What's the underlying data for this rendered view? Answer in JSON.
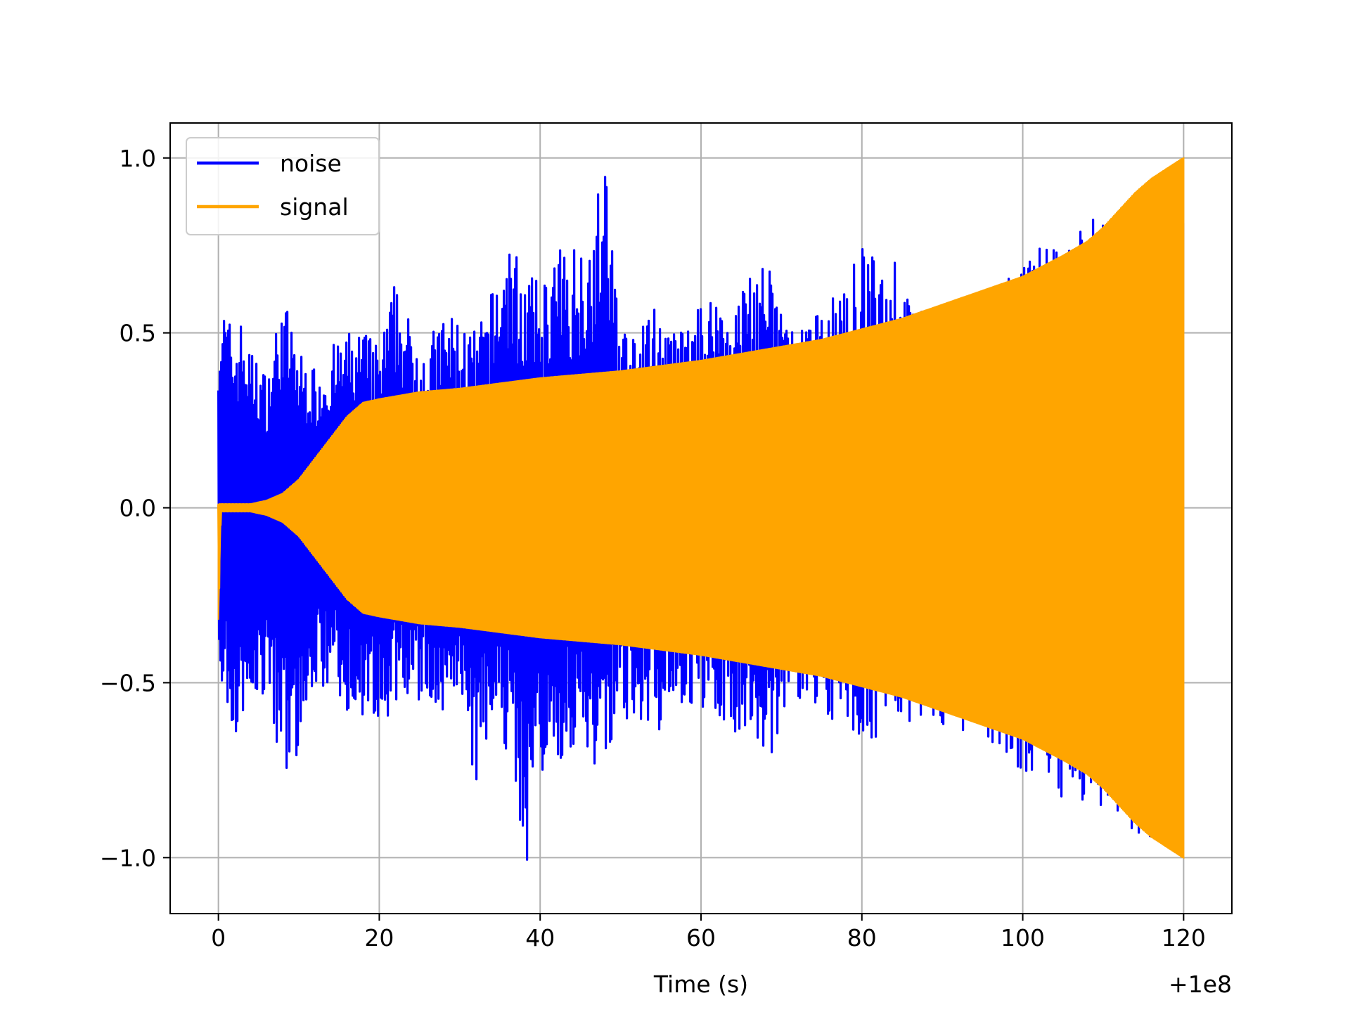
{
  "chart_data": {
    "type": "line",
    "title": "",
    "xlabel": "Time (s)",
    "ylabel": "",
    "x_offset_label": "+1e8",
    "xlim": [
      -6,
      126
    ],
    "ylim": [
      -1.16,
      1.1
    ],
    "x_ticks": [
      0,
      20,
      40,
      60,
      80,
      100,
      120
    ],
    "x_tick_labels": [
      "0",
      "20",
      "40",
      "60",
      "80",
      "100",
      "120"
    ],
    "y_ticks": [
      -1.0,
      -0.5,
      0.0,
      0.5,
      1.0
    ],
    "y_tick_labels": [
      "−1.0",
      "−0.5",
      "0.0",
      "0.5",
      "1.0"
    ],
    "grid": true,
    "legend_position": "top-left",
    "series": [
      {
        "name": "noise",
        "color": "#0000ff",
        "x_range": [
          0,
          120
        ],
        "upper_envelope": [
          [
            0,
            0.61
          ],
          [
            1,
            0.57
          ],
          [
            2,
            0.5
          ],
          [
            3,
            0.55
          ],
          [
            4,
            0.45
          ],
          [
            5,
            0.43
          ],
          [
            6,
            0.38
          ],
          [
            8,
            0.62
          ],
          [
            10,
            0.45
          ],
          [
            12,
            0.4
          ],
          [
            14,
            0.46
          ],
          [
            16,
            0.5
          ],
          [
            18,
            0.52
          ],
          [
            20,
            0.46
          ],
          [
            22,
            0.66
          ],
          [
            24,
            0.52
          ],
          [
            26,
            0.48
          ],
          [
            28,
            0.56
          ],
          [
            30,
            0.55
          ],
          [
            32,
            0.5
          ],
          [
            34,
            0.62
          ],
          [
            36,
            0.79
          ],
          [
            38,
            0.68
          ],
          [
            40,
            0.64
          ],
          [
            42,
            0.74
          ],
          [
            44,
            0.76
          ],
          [
            46,
            0.8
          ],
          [
            48,
            1.0
          ],
          [
            50,
            0.55
          ],
          [
            52,
            0.47
          ],
          [
            54,
            0.6
          ],
          [
            56,
            0.5
          ],
          [
            58,
            0.52
          ],
          [
            60,
            0.58
          ],
          [
            62,
            0.64
          ],
          [
            64,
            0.56
          ],
          [
            66,
            0.72
          ],
          [
            68,
            0.71
          ],
          [
            70,
            0.6
          ],
          [
            72,
            0.5
          ],
          [
            74,
            0.55
          ],
          [
            76,
            0.59
          ],
          [
            78,
            0.64
          ],
          [
            80,
            0.76
          ],
          [
            82,
            0.7
          ],
          [
            84,
            0.73
          ],
          [
            86,
            0.6
          ],
          [
            88,
            0.55
          ],
          [
            90,
            0.59
          ],
          [
            92,
            0.57
          ],
          [
            94,
            0.6
          ],
          [
            96,
            0.62
          ],
          [
            98,
            0.66
          ],
          [
            100,
            0.72
          ],
          [
            102,
            0.75
          ],
          [
            104,
            0.79
          ],
          [
            106,
            0.83
          ],
          [
            108,
            0.82
          ],
          [
            110,
            0.84
          ],
          [
            112,
            0.88
          ],
          [
            114,
            0.9
          ],
          [
            116,
            0.93
          ],
          [
            118,
            0.97
          ],
          [
            120,
            1.0
          ]
        ],
        "lower_envelope": [
          [
            0,
            -0.55
          ],
          [
            1,
            -0.56
          ],
          [
            2,
            -0.67
          ],
          [
            3,
            -0.6
          ],
          [
            4,
            -0.58
          ],
          [
            6,
            -0.54
          ],
          [
            8,
            -0.76
          ],
          [
            10,
            -0.7
          ],
          [
            12,
            -0.52
          ],
          [
            14,
            -0.5
          ],
          [
            16,
            -0.58
          ],
          [
            18,
            -0.62
          ],
          [
            20,
            -0.68
          ],
          [
            22,
            -0.56
          ],
          [
            24,
            -0.6
          ],
          [
            26,
            -0.56
          ],
          [
            28,
            -0.62
          ],
          [
            30,
            -0.6
          ],
          [
            32,
            -0.82
          ],
          [
            34,
            -0.65
          ],
          [
            36,
            -0.7
          ],
          [
            38,
            -1.05
          ],
          [
            40,
            -0.82
          ],
          [
            42,
            -0.75
          ],
          [
            44,
            -0.7
          ],
          [
            46,
            -0.72
          ],
          [
            48,
            -0.8
          ],
          [
            50,
            -0.62
          ],
          [
            52,
            -0.64
          ],
          [
            54,
            -0.66
          ],
          [
            56,
            -0.62
          ],
          [
            58,
            -0.6
          ],
          [
            60,
            -0.58
          ],
          [
            62,
            -0.6
          ],
          [
            64,
            -0.65
          ],
          [
            66,
            -0.62
          ],
          [
            68,
            -0.8
          ],
          [
            70,
            -0.6
          ],
          [
            72,
            -0.56
          ],
          [
            74,
            -0.58
          ],
          [
            76,
            -0.6
          ],
          [
            78,
            -0.62
          ],
          [
            80,
            -0.67
          ],
          [
            82,
            -0.66
          ],
          [
            84,
            -0.63
          ],
          [
            86,
            -0.62
          ],
          [
            88,
            -0.62
          ],
          [
            90,
            -0.62
          ],
          [
            92,
            -0.64
          ],
          [
            94,
            -0.66
          ],
          [
            96,
            -0.7
          ],
          [
            98,
            -0.72
          ],
          [
            100,
            -0.75
          ],
          [
            102,
            -0.78
          ],
          [
            104,
            -0.8
          ],
          [
            105,
            -0.85
          ],
          [
            106,
            -0.82
          ],
          [
            108,
            -0.87
          ],
          [
            110,
            -0.89
          ],
          [
            112,
            -0.91
          ],
          [
            114,
            -0.93
          ],
          [
            116,
            -0.95
          ],
          [
            118,
            -0.97
          ],
          [
            120,
            -1.0
          ]
        ]
      },
      {
        "name": "signal",
        "color": "#ffa500",
        "x_range": [
          0,
          120
        ],
        "upper_envelope": [
          [
            0,
            0.01
          ],
          [
            4,
            0.01
          ],
          [
            6,
            0.02
          ],
          [
            8,
            0.04
          ],
          [
            10,
            0.08
          ],
          [
            12,
            0.14
          ],
          [
            14,
            0.2
          ],
          [
            16,
            0.26
          ],
          [
            18,
            0.3
          ],
          [
            20,
            0.31
          ],
          [
            25,
            0.33
          ],
          [
            30,
            0.34
          ],
          [
            35,
            0.355
          ],
          [
            40,
            0.37
          ],
          [
            45,
            0.38
          ],
          [
            50,
            0.39
          ],
          [
            55,
            0.405
          ],
          [
            60,
            0.42
          ],
          [
            65,
            0.44
          ],
          [
            70,
            0.46
          ],
          [
            75,
            0.48
          ],
          [
            80,
            0.51
          ],
          [
            85,
            0.54
          ],
          [
            90,
            0.58
          ],
          [
            95,
            0.62
          ],
          [
            100,
            0.66
          ],
          [
            105,
            0.72
          ],
          [
            108,
            0.76
          ],
          [
            110,
            0.8
          ],
          [
            112,
            0.85
          ],
          [
            114,
            0.9
          ],
          [
            116,
            0.94
          ],
          [
            118,
            0.97
          ],
          [
            120,
            1.0
          ]
        ],
        "lower_envelope": [
          [
            0,
            -0.32
          ],
          [
            0.3,
            -0.01
          ],
          [
            4,
            -0.01
          ],
          [
            6,
            -0.02
          ],
          [
            8,
            -0.04
          ],
          [
            10,
            -0.08
          ],
          [
            12,
            -0.14
          ],
          [
            14,
            -0.2
          ],
          [
            16,
            -0.26
          ],
          [
            18,
            -0.3
          ],
          [
            20,
            -0.31
          ],
          [
            25,
            -0.33
          ],
          [
            30,
            -0.34
          ],
          [
            35,
            -0.355
          ],
          [
            40,
            -0.37
          ],
          [
            45,
            -0.38
          ],
          [
            50,
            -0.39
          ],
          [
            55,
            -0.405
          ],
          [
            60,
            -0.42
          ],
          [
            65,
            -0.44
          ],
          [
            70,
            -0.46
          ],
          [
            75,
            -0.48
          ],
          [
            80,
            -0.51
          ],
          [
            85,
            -0.54
          ],
          [
            90,
            -0.58
          ],
          [
            95,
            -0.62
          ],
          [
            100,
            -0.66
          ],
          [
            105,
            -0.72
          ],
          [
            108,
            -0.76
          ],
          [
            110,
            -0.8
          ],
          [
            112,
            -0.85
          ],
          [
            114,
            -0.9
          ],
          [
            116,
            -0.94
          ],
          [
            118,
            -0.97
          ],
          [
            120,
            -1.0
          ]
        ]
      }
    ]
  }
}
